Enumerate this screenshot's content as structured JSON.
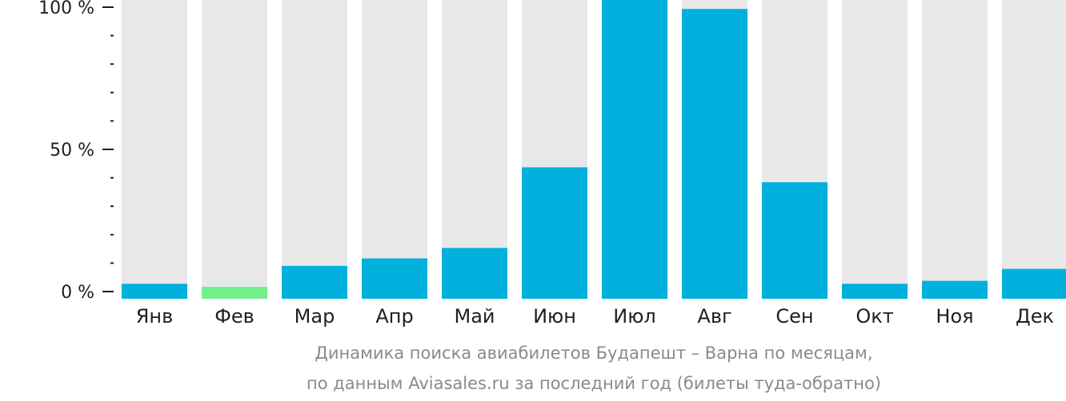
{
  "chart_data": {
    "type": "bar",
    "categories": [
      "Янв",
      "Фев",
      "Мар",
      "Апр",
      "Май",
      "Июн",
      "Июл",
      "Авг",
      "Сен",
      "Окт",
      "Ноя",
      "Дек"
    ],
    "values": [
      5,
      4,
      11,
      13.5,
      17,
      44,
      100,
      97,
      39,
      5,
      6,
      10
    ],
    "highlight_index": 1,
    "ylim": [
      0,
      100
    ],
    "yticks": [
      {
        "value": 0,
        "label": "0 %"
      },
      {
        "value": 50,
        "label": "50 %"
      },
      {
        "value": 100,
        "label": "100 %"
      }
    ],
    "minor_ticks": [
      10,
      20,
      30,
      40,
      60,
      70,
      80,
      90
    ],
    "grid": false,
    "legend": "none",
    "colors": {
      "bar": "#00b0dd",
      "highlight": "#72f08a",
      "track": "#e8e8e8",
      "axis": "#1f1f1f"
    },
    "caption": {
      "line1": "Динамика поиска авиабилетов Будапешт – Варна по месяцам,",
      "line2": "по данным Aviasales.ru за последний год (билеты туда-обратно)"
    }
  }
}
